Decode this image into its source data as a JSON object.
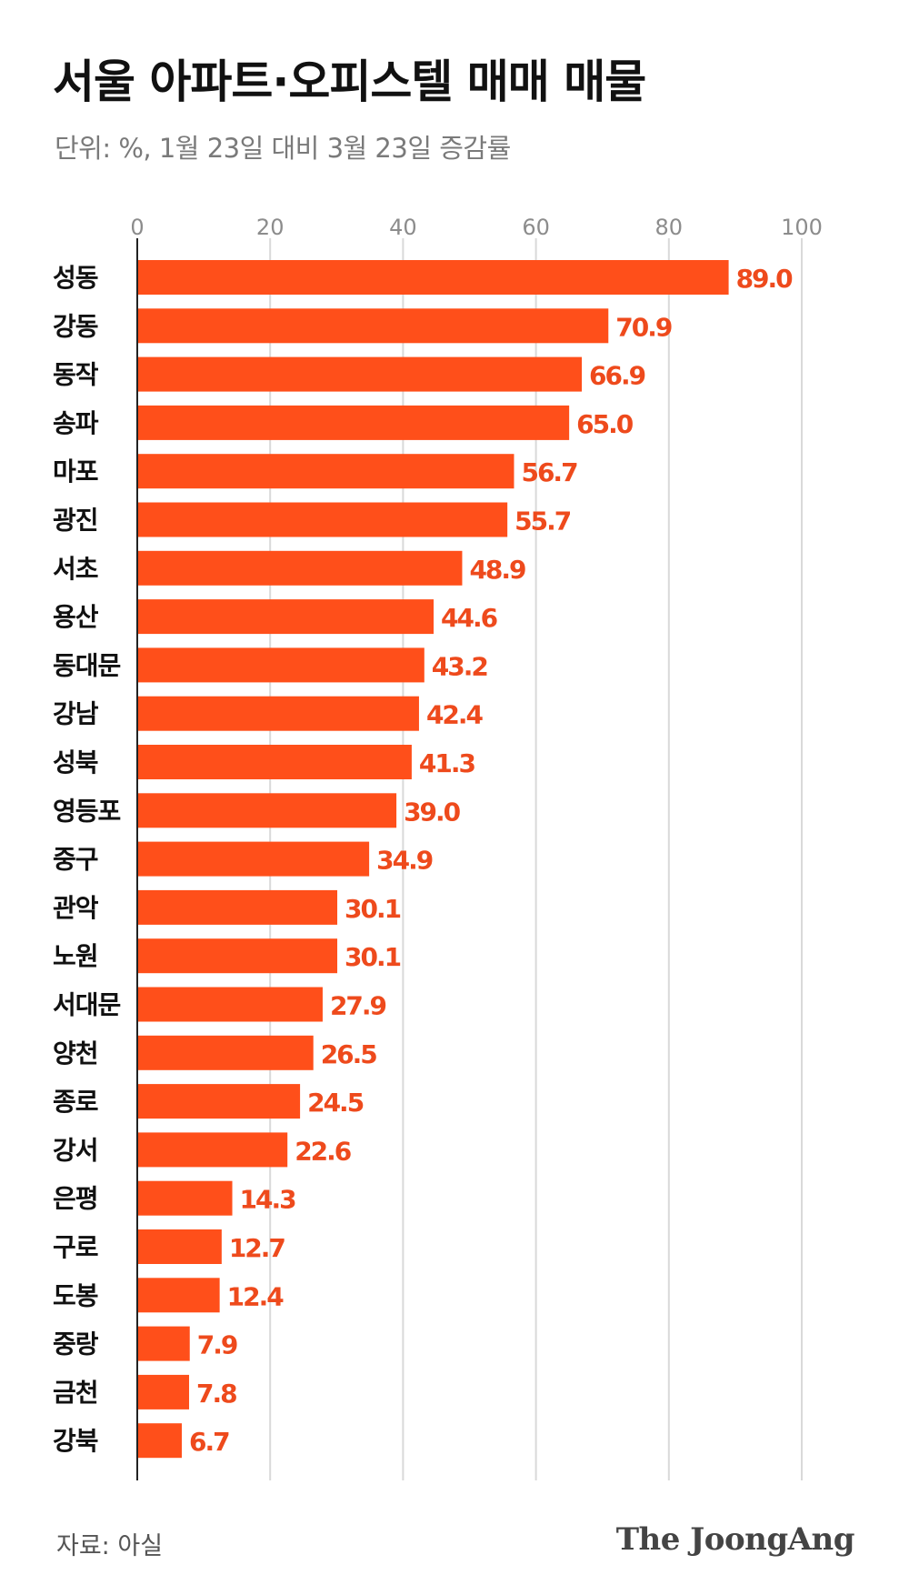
{
  "colors": {
    "bar": "#FF4F1A",
    "value_label": "#EE4A1C",
    "grid": "#d9d9d9",
    "axis": "#222222"
  },
  "brand": "The JoongAng",
  "source": "자료: 아실",
  "chart_data": {
    "type": "bar",
    "orientation": "horizontal",
    "title": "서울 아파트·오피스텔 매매 매물",
    "subtitle": "단위: %, 1월 23일 대비 3월 23일 증감률",
    "xlabel": "",
    "ylabel": "",
    "xlim": [
      0,
      100
    ],
    "ticks": [
      0,
      20,
      40,
      60,
      80,
      100
    ],
    "tick_labels": [
      "0",
      "20",
      "40",
      "60",
      "80",
      "100"
    ],
    "grid": true,
    "categories": [
      "성동",
      "강동",
      "동작",
      "송파",
      "마포",
      "광진",
      "서초",
      "용산",
      "동대문",
      "강남",
      "성북",
      "영등포",
      "중구",
      "관악",
      "노원",
      "서대문",
      "양천",
      "종로",
      "강서",
      "은평",
      "구로",
      "도봉",
      "중랑",
      "금천",
      "강북"
    ],
    "values": [
      89.0,
      70.9,
      66.9,
      65.0,
      56.7,
      55.7,
      48.9,
      44.6,
      43.2,
      42.4,
      41.3,
      39.0,
      34.9,
      30.1,
      30.1,
      27.9,
      26.5,
      24.5,
      22.6,
      14.3,
      12.7,
      12.4,
      7.9,
      7.8,
      6.7
    ],
    "value_labels": [
      "89.0",
      "70.9",
      "66.9",
      "65.0",
      "56.7",
      "55.7",
      "48.9",
      "44.6",
      "43.2",
      "42.4",
      "41.3",
      "39.0",
      "34.9",
      "30.1",
      "30.1",
      "27.9",
      "26.5",
      "24.5",
      "22.6",
      "14.3",
      "12.7",
      "12.4",
      "7.9",
      "7.8",
      "6.7"
    ]
  }
}
